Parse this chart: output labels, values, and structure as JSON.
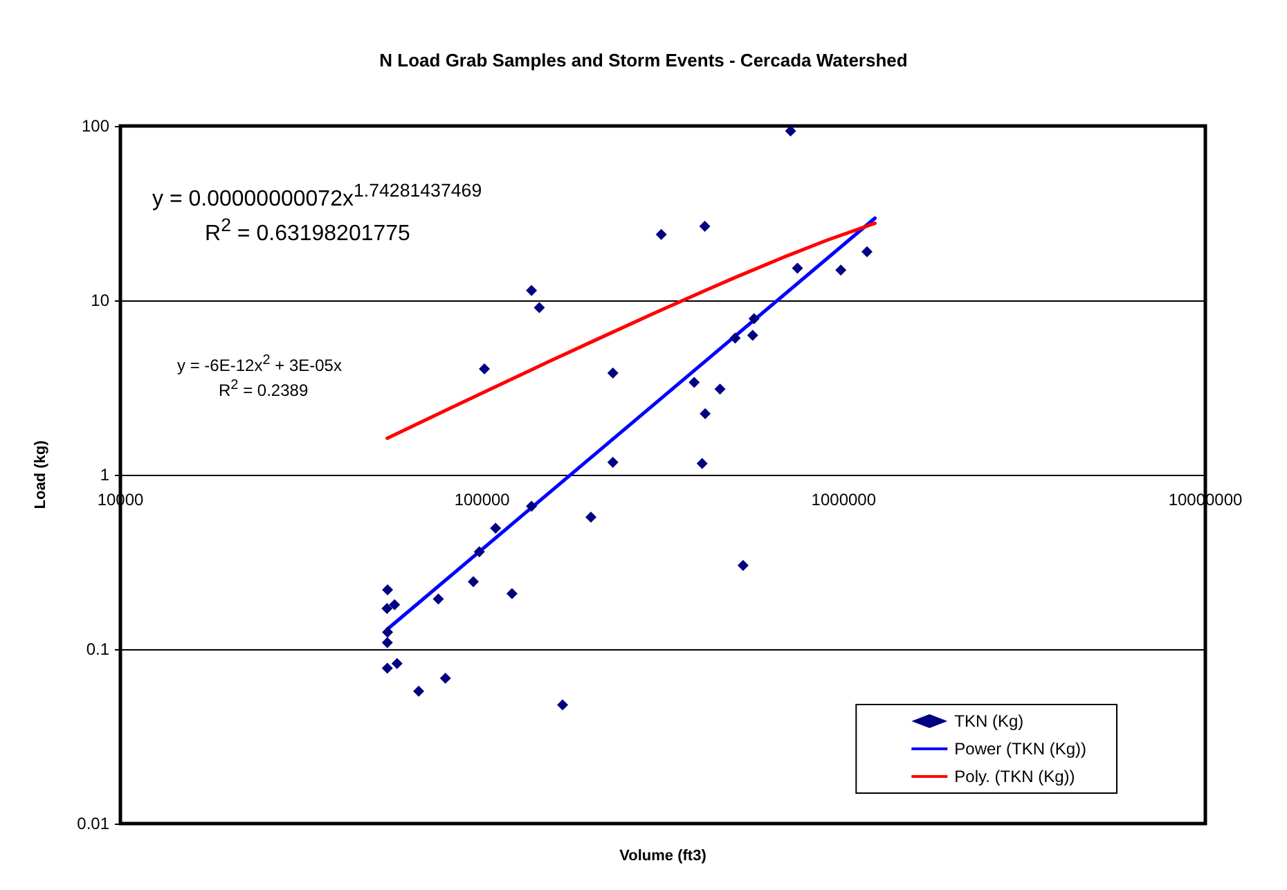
{
  "chart_data": {
    "type": "scatter",
    "title": "N Load Grab Samples and Storm Events - Cercada Watershed",
    "xlabel": "Volume (ft3)",
    "ylabel": "Load (kg)",
    "log": "xy",
    "grid": "y",
    "legend": "bottom right",
    "marker": "diamond",
    "xlim": [
      10000,
      10000000
    ],
    "xticks": [
      10000,
      100000,
      1000000,
      10000000
    ],
    "ylim": [
      0.01,
      100
    ],
    "yticks": [
      0.01,
      0.1,
      1,
      10,
      100
    ],
    "annotations": [
      "y = 0.00000000072x$^{1.74281437469}$",
      "R$^{2}$ = 0.63198201775",
      "y = -6E-12x$^{2}$ + 3E-05x",
      "R$^{2}$ = 0.2389"
    ],
    "series": [
      {
        "name": "TKN (Kg)",
        "color": "#000080",
        "x": [
          713000,
          313000,
          413000,
          137000,
          144000,
          745000,
          982000,
          1160000,
          565000,
          501000,
          560000,
          101500,
          230000,
          386000,
          455000,
          414000,
          230000,
          406000,
          137000,
          200000,
          109000,
          98300,
          527000,
          94600,
          121000,
          75700,
          54800,
          54600,
          57300,
          54800,
          54700,
          54700,
          58200,
          79200,
          66800,
          167000
        ],
        "values": [
          93.5,
          23.9,
          26.6,
          11.4,
          9.08,
          15.3,
          14.9,
          19.0,
          7.85,
          6.08,
          6.31,
          4.05,
          3.83,
          3.39,
          3.1,
          2.24,
          1.18,
          1.16,
          0.66,
          0.571,
          0.494,
          0.362,
          0.302,
          0.244,
          0.208,
          0.194,
          0.219,
          0.171,
          0.18,
          0.125,
          0.109,
          0.0778,
          0.0827,
          0.0681,
          0.0574,
          0.0479
        ]
      },
      {
        "name": "Power (TKN (Kg))",
        "type": "line",
        "color": "#0000ff",
        "marker": "none",
        "x": [
          54700,
          1220000
        ],
        "values": [
          0.13,
          29.6
        ]
      },
      {
        "name": "Poly. (TKN (Kg))",
        "type": "line",
        "color": "#ff0000",
        "marker": "none",
        "x": [
          54700,
          80000,
          100000,
          150000,
          200000,
          300000,
          400000,
          500000,
          700000,
          900000,
          1220000
        ],
        "values": [
          1.62,
          2.36,
          2.94,
          4.37,
          5.76,
          8.46,
          11.04,
          13.5,
          18.06,
          22.14,
          27.67
        ]
      }
    ]
  }
}
